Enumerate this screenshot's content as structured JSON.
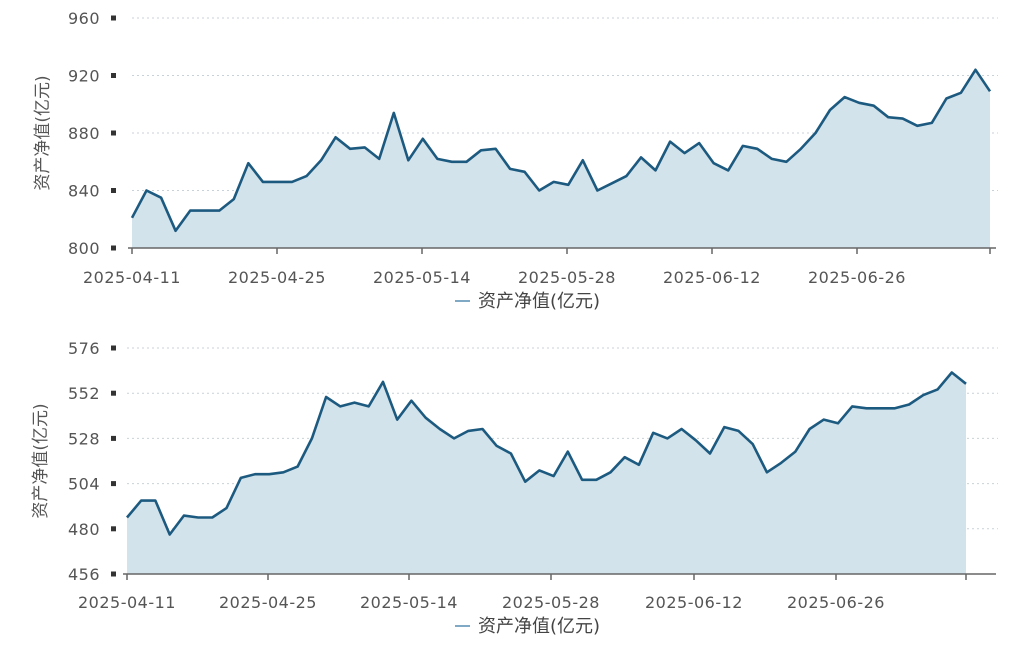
{
  "chart_data": [
    {
      "type": "area",
      "ylabel": "资产净值(亿元)",
      "legend": "资产净值(亿元)",
      "legend_position": "bottom-center",
      "grid": true,
      "ylim": [
        800,
        960
      ],
      "yticks": [
        "800",
        "840",
        "880",
        "920",
        "960"
      ],
      "xticks": [
        "2025-04-11",
        "2025-04-25",
        "2025-05-14",
        "2025-05-28",
        "2025-06-12",
        "2025-06-26"
      ],
      "colors": {
        "line": "#1d5a80",
        "fill": "#d3e3ec"
      },
      "series": [
        {
          "values": [
            821,
            840,
            835,
            812,
            826,
            826,
            826,
            834,
            859,
            846,
            846,
            846,
            850,
            861,
            877,
            869,
            870,
            862,
            894,
            861,
            876,
            862,
            860,
            860,
            868,
            869,
            855,
            853,
            840,
            846,
            844,
            861,
            840,
            845,
            850,
            863,
            854,
            874,
            866,
            873,
            859,
            854,
            871,
            869,
            862,
            860,
            869,
            880,
            896,
            905,
            901,
            899,
            891,
            890,
            885,
            887,
            904,
            908,
            924,
            909
          ]
        }
      ]
    },
    {
      "type": "area",
      "ylabel": "资产净值(亿元)",
      "legend": "资产净值(亿元)",
      "legend_position": "bottom-center",
      "grid": true,
      "ylim": [
        456,
        576
      ],
      "yticks": [
        "456",
        "480",
        "504",
        "528",
        "552",
        "576"
      ],
      "xticks": [
        "2025-04-11",
        "2025-04-25",
        "2025-05-14",
        "2025-05-28",
        "2025-06-12",
        "2025-06-26"
      ],
      "colors": {
        "line": "#1d5a80",
        "fill": "#d3e3ec"
      },
      "series": [
        {
          "values": [
            486,
            495,
            495,
            477,
            487,
            486,
            486,
            491,
            507,
            509,
            509,
            510,
            513,
            528,
            550,
            545,
            547,
            545,
            558,
            538,
            548,
            539,
            533,
            528,
            532,
            533,
            524,
            520,
            505,
            511,
            508,
            521,
            506,
            506,
            510,
            518,
            514,
            531,
            528,
            533,
            527,
            520,
            534,
            532,
            525,
            510,
            515,
            521,
            533,
            538,
            536,
            545,
            544,
            544,
            544,
            546,
            551,
            554,
            563,
            557
          ]
        }
      ]
    }
  ]
}
